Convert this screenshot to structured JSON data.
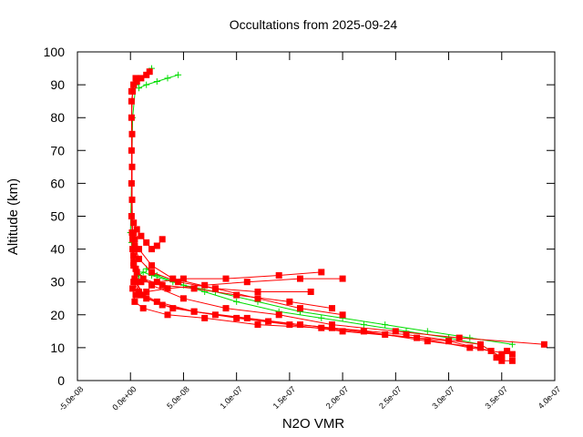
{
  "chart_data": {
    "type": "scatter",
    "title": "Occultations from 2025-09-24",
    "xlabel": "N2O VMR",
    "ylabel": "Altitude (km)",
    "xlim": [
      -5e-08,
      4e-07
    ],
    "ylim": [
      0,
      100
    ],
    "xticks": [
      -5e-08,
      0,
      5e-08,
      1e-07,
      1.5e-07,
      2e-07,
      2.5e-07,
      3e-07,
      3.5e-07,
      4e-07
    ],
    "xtick_labels": [
      "-5.0e-08",
      "0.0e+00",
      "5.0e-08",
      "1.0e-07",
      "1.5e-07",
      "2.0e-07",
      "2.5e-07",
      "3.0e-07",
      "3.5e-07",
      "4.0e-07"
    ],
    "yticks": [
      0,
      10,
      20,
      30,
      40,
      50,
      60,
      70,
      80,
      90,
      100
    ],
    "ytick_labels": [
      "0",
      "10",
      "20",
      "30",
      "40",
      "50",
      "60",
      "70",
      "80",
      "90",
      "100"
    ],
    "grid": false,
    "legend": false,
    "series": [
      {
        "color": "#ff0000",
        "marker": "square",
        "profiles": [
          [
            [
              3.5e-07,
              7
            ],
            [
              3.3e-07,
              11
            ],
            [
              2.6e-07,
              14
            ],
            [
              1.9e-07,
              16
            ],
            [
              1.3e-07,
              18
            ],
            [
              8e-08,
              20
            ],
            [
              4e-08,
              22
            ],
            [
              1.5e-08,
              25
            ],
            [
              5e-09,
              30
            ],
            [
              3e-09,
              35
            ],
            [
              2e-09,
              40
            ],
            [
              1.5e-09,
              45
            ],
            [
              1e-09,
              50
            ],
            [
              1e-09,
              60
            ],
            [
              1e-09,
              70
            ],
            [
              1e-09,
              80
            ],
            [
              2e-09,
              88
            ],
            [
              5e-09,
              92
            ]
          ],
          [
            [
              3.6e-07,
              8
            ],
            [
              3.2e-07,
              10
            ],
            [
              2.7e-07,
              13
            ],
            [
              2e-07,
              15
            ],
            [
              1.5e-07,
              17
            ],
            [
              1e-07,
              19
            ],
            [
              6e-08,
              21
            ],
            [
              3e-08,
              23
            ],
            [
              1e-08,
              26
            ],
            [
              4e-09,
              31
            ],
            [
              3e-09,
              38
            ],
            [
              2e-09,
              44
            ],
            [
              1.5e-09,
              55
            ],
            [
              1.5e-09,
              65
            ],
            [
              1.5e-09,
              75
            ],
            [
              1e-09,
              85
            ],
            [
              3e-09,
              90
            ]
          ],
          [
            [
              3.4e-07,
              9
            ],
            [
              3e-07,
              12
            ],
            [
              2.4e-07,
              14
            ],
            [
              1.8e-07,
              16
            ],
            [
              1.2e-07,
              17
            ],
            [
              7e-08,
              19
            ],
            [
              3.5e-08,
              20
            ],
            [
              1.2e-08,
              22
            ],
            [
              4e-09,
              24
            ],
            [
              2e-09,
              28
            ]
          ],
          [
            [
              3.3e-07,
              10
            ],
            [
              2.8e-07,
              12
            ],
            [
              2.2e-07,
              15
            ],
            [
              1.6e-07,
              17
            ],
            [
              1.1e-07,
              19
            ],
            [
              6e-08,
              21
            ],
            [
              2.5e-08,
              24
            ],
            [
              8e-09,
              27
            ],
            [
              3e-09,
              30
            ]
          ],
          [
            [
              3.9e-07,
              11
            ],
            [
              3.1e-07,
              13
            ],
            [
              2.5e-07,
              15
            ],
            [
              1.9e-07,
              17
            ],
            [
              1.4e-07,
              20
            ],
            [
              9e-08,
              22
            ],
            [
              5e-08,
              25
            ],
            [
              2e-08,
              29
            ],
            [
              6e-09,
              33
            ],
            [
              3e-09,
              38
            ],
            [
              2e-09,
              43
            ]
          ],
          [
            [
              2e-07,
              31
            ],
            [
              1.6e-07,
              31
            ],
            [
              1.1e-07,
              30
            ],
            [
              7e-08,
              29
            ],
            [
              3.5e-08,
              28
            ],
            [
              1.5e-08,
              27
            ],
            [
              5e-09,
              26
            ]
          ],
          [
            [
              1.8e-07,
              33
            ],
            [
              1.4e-07,
              32
            ],
            [
              9e-08,
              31
            ],
            [
              5e-08,
              31
            ],
            [
              2.5e-08,
              30
            ],
            [
              1e-08,
              30
            ],
            [
              4e-09,
              31
            ]
          ],
          [
            [
              1.9e-07,
              22
            ],
            [
              1.5e-07,
              24
            ],
            [
              1e-07,
              26
            ],
            [
              6e-08,
              28
            ],
            [
              3e-08,
              29
            ],
            [
              1.2e-08,
              31
            ],
            [
              5e-09,
              34
            ],
            [
              3e-09,
              36
            ]
          ],
          [
            [
              2e-07,
              20
            ],
            [
              1.6e-07,
              22
            ],
            [
              1.2e-07,
              25
            ],
            [
              8e-08,
              28
            ],
            [
              4e-08,
              31
            ],
            [
              2e-08,
              35
            ],
            [
              8e-09,
              40
            ],
            [
              4e-09,
              43
            ],
            [
              3e-09,
              45
            ]
          ],
          [
            [
              1.7e-07,
              27
            ],
            [
              1.2e-07,
              27
            ],
            [
              8e-08,
              28
            ],
            [
              4.5e-08,
              30
            ],
            [
              2e-08,
              33
            ],
            [
              8e-09,
              37
            ],
            [
              4e-09,
              41
            ]
          ],
          [
            [
              3e-08,
              43
            ],
            [
              2.5e-08,
              41
            ],
            [
              2e-08,
              40
            ],
            [
              1.5e-08,
              42
            ],
            [
              1e-08,
              44
            ],
            [
              6e-09,
              46
            ],
            [
              3e-09,
              48
            ]
          ],
          [
            [
              3.6e-07,
              6
            ],
            [
              3.5e-07,
              6
            ],
            [
              3.45e-07,
              7
            ],
            [
              3.5e-07,
              8
            ],
            [
              3.55e-07,
              9
            ]
          ],
          [
            [
              1.8e-08,
              94
            ],
            [
              1.5e-08,
              93
            ],
            [
              1e-08,
              92
            ],
            [
              6e-09,
              91
            ],
            [
              3e-09,
              90
            ],
            [
              1e-09,
              88
            ]
          ]
        ]
      },
      {
        "color": "#00dd00",
        "marker": "plus",
        "profiles": [
          [
            [
              3.5e-07,
              7
            ],
            [
              3.3e-07,
              11
            ],
            [
              3e-07,
              13
            ],
            [
              2.6e-07,
              15
            ],
            [
              2.2e-07,
              17
            ],
            [
              1.8e-07,
              19
            ],
            [
              1.4e-07,
              21
            ],
            [
              1e-07,
              24
            ],
            [
              7e-08,
              27
            ],
            [
              4e-08,
              30
            ],
            [
              2e-08,
              32
            ],
            [
              1.2e-08,
              33
            ],
            [
              8e-09,
              32
            ],
            [
              5e-09,
              31
            ],
            [
              3e-09,
              35
            ],
            [
              2e-09,
              40
            ],
            [
              1e-09,
              42
            ],
            [
              0,
              45
            ],
            [
              1e-09,
              60
            ],
            [
              2e-09,
              80
            ],
            [
              5e-09,
              90
            ],
            [
              2e-08,
              95
            ]
          ],
          [
            [
              3.6e-07,
              11
            ],
            [
              3.2e-07,
              13
            ],
            [
              2.8e-07,
              15
            ],
            [
              2.4e-07,
              17
            ],
            [
              2e-07,
              19
            ],
            [
              1.6e-07,
              21
            ],
            [
              1.2e-07,
              24
            ],
            [
              8e-08,
              27
            ],
            [
              5e-08,
              29
            ],
            [
              2.5e-08,
              32
            ],
            [
              1.5e-08,
              34
            ]
          ],
          [
            [
              4.5e-08,
              93
            ],
            [
              3.5e-08,
              92
            ],
            [
              2.5e-08,
              91
            ],
            [
              1.5e-08,
              90
            ],
            [
              8e-09,
              89
            ]
          ]
        ]
      }
    ]
  }
}
